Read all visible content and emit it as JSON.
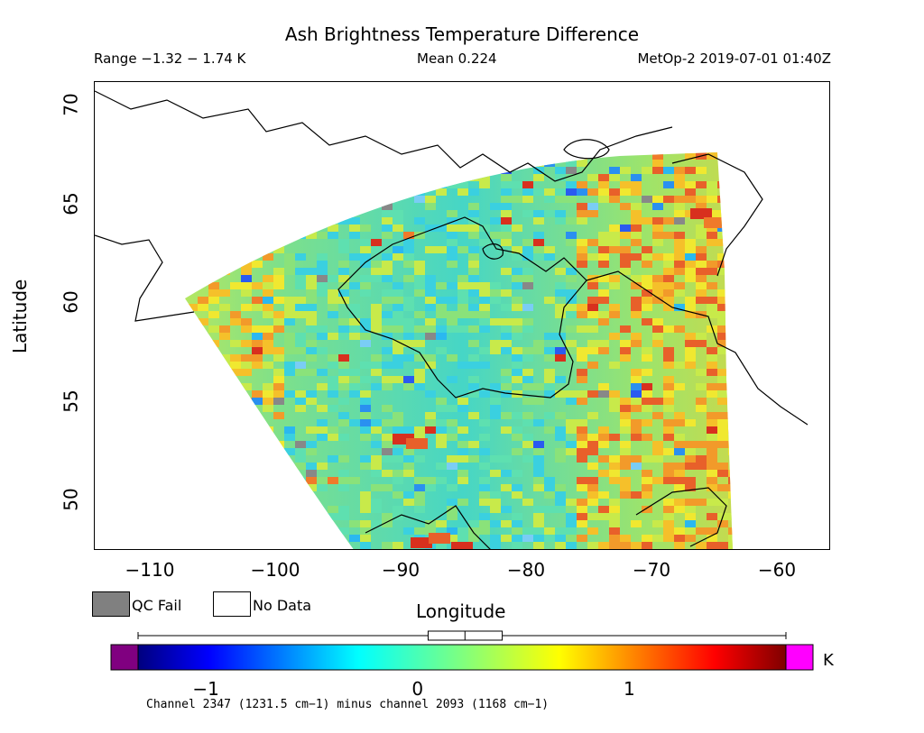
{
  "title": "Ash Brightness Temperature Difference",
  "stats": {
    "range": "Range −1.32 − 1.74 K",
    "mean": "Mean 0.224",
    "satellite_time": "MetOp-2 2019-07-01 01:40Z"
  },
  "axes": {
    "xlabel": "Longitude",
    "ylabel": "Latitude",
    "x_ticks": [
      "−110",
      "−100",
      "−90",
      "−80",
      "−70",
      "−60"
    ],
    "y_ticks": [
      "70",
      "65",
      "60",
      "55",
      "50"
    ],
    "x_range": [
      -115,
      -56
    ],
    "y_range": [
      47.5,
      71.5
    ]
  },
  "legend": {
    "qc_fail": "QC Fail",
    "no_data": "No Data",
    "qc_fail_color": "#808080",
    "no_data_color": "#ffffff"
  },
  "colorbar": {
    "ticks": [
      "−1",
      "0",
      "1"
    ],
    "tick_values": [
      -1,
      0,
      1
    ],
    "min": -1.32,
    "max": 1.74,
    "unit": "K",
    "under_color": "#800080",
    "over_color": "#ff00ff",
    "box_values": [
      0.05,
      0.224,
      0.4
    ],
    "whisker_values": [
      -1.32,
      1.74
    ]
  },
  "footnote": "Channel 2347 (1231.5 cm−1) minus channel 2093 (1168 cm−1)"
}
